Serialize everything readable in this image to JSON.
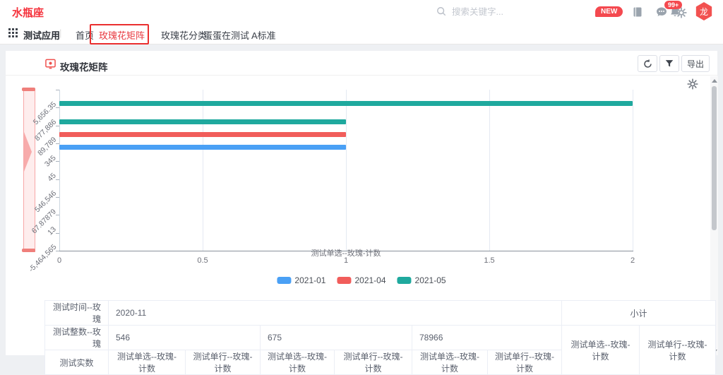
{
  "header": {
    "app_title": "水瓶座",
    "search_placeholder": "搜索关键字...",
    "new_badge": "NEW",
    "notification_count": "99+",
    "avatar_text": "龙"
  },
  "nav": {
    "app_label": "测试应用",
    "divider": "|",
    "tabs": [
      {
        "label": "首页",
        "active": false
      },
      {
        "label": "玫瑰花矩阵",
        "active": true
      },
      {
        "label": "玫瑰花分类",
        "active": false
      },
      {
        "label": "蛋蛋在测试",
        "active": false
      },
      {
        "label": "A标准",
        "active": false
      }
    ]
  },
  "panel": {
    "title": "玫瑰花矩阵",
    "export_label": "导出"
  },
  "colors": {
    "accent_red": "#f5333d",
    "annotation_red": "#ea2f2f",
    "bar_blue": "#4aa0f5",
    "bar_red": "#f15d5b",
    "bar_teal": "#1fa99e"
  },
  "chart_data": {
    "type": "bar",
    "orientation": "horizontal",
    "xlabel": "测试单选--玫瑰-计数",
    "xlim": [
      0,
      2
    ],
    "x_ticks": [
      "0",
      "0.5",
      "1",
      "1.5",
      "2"
    ],
    "grid": true,
    "legend_position": "bottom",
    "y_categories": [
      "5,656.35",
      "877,886",
      "89,789",
      "345",
      "45",
      "546,546",
      "67.87879",
      "13",
      "-5,464,565"
    ],
    "series": [
      {
        "name": "2021-01",
        "color": "#4aa0f5",
        "points": [
          {
            "category": "345",
            "value": 1
          }
        ]
      },
      {
        "name": "2021-04",
        "color": "#f15d5b",
        "points": [
          {
            "category": "89,789",
            "value": 1
          }
        ]
      },
      {
        "name": "2021-05",
        "color": "#1fa99e",
        "points": [
          {
            "category": "5,656.35",
            "value": 2
          },
          {
            "category": "877,886",
            "value": 1
          }
        ]
      }
    ]
  },
  "table": {
    "row1": {
      "label": "测试时间--玫瑰",
      "value": "2020-11",
      "subtotal": "小计"
    },
    "row2": {
      "label": "测试整数--玫瑰",
      "values": [
        "546",
        "675",
        "78966"
      ],
      "subtotal_headers": [
        "测试单选--玫瑰-计数",
        "测试单行--玫瑰-计数"
      ]
    },
    "row3": {
      "label": "测试实数",
      "headers": [
        "测试单选--玫瑰-计数",
        "测试单行--玫瑰-计数",
        "测试单选--玫瑰-计数",
        "测试单行--玫瑰-计数",
        "测试单选--玫瑰-计数",
        "测试单行--玫瑰-计数"
      ]
    }
  }
}
